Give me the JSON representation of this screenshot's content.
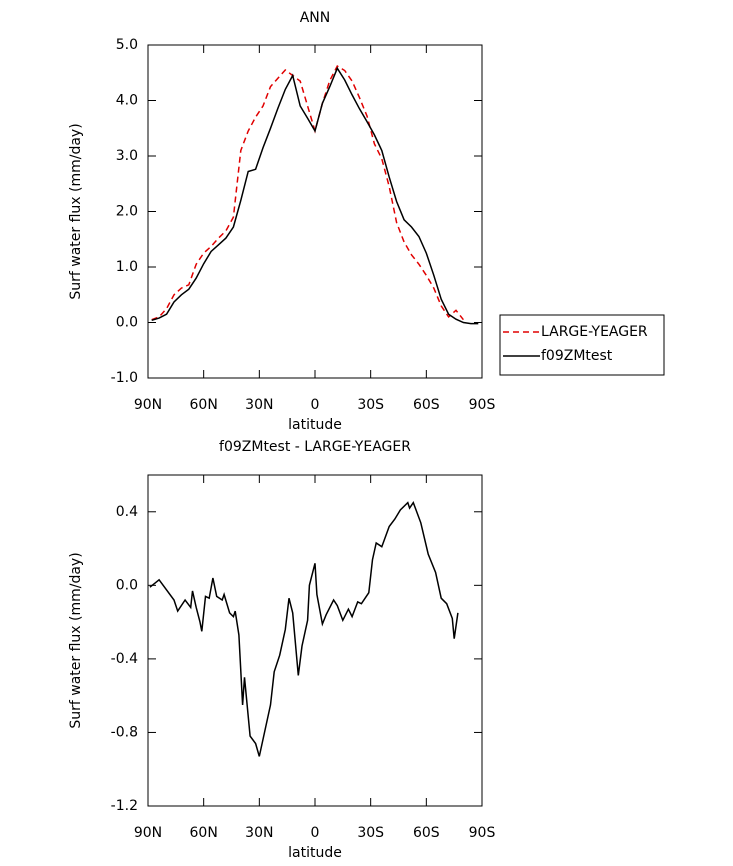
{
  "chart_data": [
    {
      "type": "line",
      "title": "ANN",
      "xlabel": "latitude",
      "ylabel": "Surf water flux (mm/day)",
      "xlim": [
        90,
        -90
      ],
      "xticks": [
        {
          "value": 90,
          "label": "90N"
        },
        {
          "value": 60,
          "label": "60N"
        },
        {
          "value": 30,
          "label": "30N"
        },
        0,
        {
          "value": -30,
          "label": "30S"
        },
        {
          "value": -60,
          "label": "60S"
        },
        {
          "value": -90,
          "label": "90S"
        }
      ],
      "ylim": [
        -1,
        5
      ],
      "yticks": [
        {
          "value": 5,
          "label": "5.0"
        },
        {
          "value": 4,
          "label": "4.0"
        },
        {
          "value": 3,
          "label": "3.0"
        },
        {
          "value": 2,
          "label": "2.0"
        },
        {
          "value": 1,
          "label": "1.0"
        },
        {
          "value": 0,
          "label": "0.0"
        },
        {
          "value": -1,
          "label": "-1.0"
        }
      ],
      "legend": "right",
      "x": [
        88,
        84,
        80,
        76,
        72,
        68,
        64,
        60,
        56,
        52,
        48,
        44,
        40,
        36,
        32,
        28,
        24,
        20,
        16,
        12,
        8,
        4,
        0,
        -4,
        -8,
        -12,
        -16,
        -20,
        -24,
        -28,
        -32,
        -36,
        -40,
        -44,
        -48,
        -52,
        -56,
        -60,
        -64,
        -68,
        -72,
        -76,
        -80,
        -84,
        -88
      ],
      "series": [
        {
          "name": "LARGE-YEAGER",
          "color": "#e00000",
          "linestyle": "dashed",
          "values": [
            0.05,
            0.1,
            0.25,
            0.5,
            0.62,
            0.68,
            1.05,
            1.25,
            1.37,
            1.52,
            1.65,
            1.9,
            3.1,
            3.45,
            3.7,
            3.9,
            4.25,
            4.4,
            4.55,
            4.45,
            4.35,
            3.9,
            3.45,
            3.95,
            4.36,
            4.62,
            4.54,
            4.35,
            4.05,
            3.72,
            3.22,
            2.95,
            2.45,
            1.8,
            1.45,
            1.22,
            1.05,
            0.85,
            0.62,
            0.3,
            0.1,
            0.22,
            0.05,
            null,
            null
          ]
        },
        {
          "name": "f09ZMtest",
          "color": "#000000",
          "linestyle": "solid",
          "values": [
            0.04,
            0.08,
            0.15,
            0.37,
            0.5,
            0.6,
            0.8,
            1.06,
            1.28,
            1.4,
            1.52,
            1.72,
            2.2,
            2.72,
            2.76,
            3.15,
            3.5,
            3.86,
            4.2,
            4.45,
            3.9,
            3.68,
            3.45,
            3.95,
            4.25,
            4.58,
            4.37,
            4.1,
            3.85,
            3.62,
            3.38,
            3.1,
            2.62,
            2.18,
            1.85,
            1.72,
            1.55,
            1.25,
            0.85,
            0.42,
            0.15,
            0.06,
            0.0,
            -0.02,
            -0.02
          ]
        }
      ]
    },
    {
      "type": "line",
      "title": "f09ZMtest - LARGE-YEAGER",
      "xlabel": "latitude",
      "ylabel": "Surf water flux (mm/day)",
      "xlim": [
        90,
        -90
      ],
      "xticks": [
        {
          "value": 90,
          "label": "90N"
        },
        {
          "value": 60,
          "label": "60N"
        },
        {
          "value": 30,
          "label": "30N"
        },
        0,
        {
          "value": -30,
          "label": "30S"
        },
        {
          "value": -60,
          "label": "60S"
        },
        {
          "value": -90,
          "label": "90S"
        }
      ],
      "ylim": [
        -1.2,
        0.6
      ],
      "yticks": [
        0.4,
        {
          "value": 0,
          "label": "0.0"
        },
        -0.4,
        -0.8,
        -1.2
      ],
      "x": [
        89,
        84,
        76,
        74,
        70,
        67,
        66,
        64,
        62,
        61,
        59,
        57,
        55,
        53,
        50,
        49,
        46,
        44,
        43,
        41,
        39,
        38,
        35,
        32,
        30,
        27,
        24,
        22,
        19,
        16,
        14,
        12,
        9,
        7,
        4,
        3,
        0,
        -1,
        -4,
        -6,
        -10,
        -12,
        -15,
        -18,
        -20,
        -23,
        -25,
        -29,
        -31,
        -33,
        -36,
        -40,
        -43,
        -46,
        -50,
        -51,
        -53,
        -57,
        -61,
        -65,
        -68,
        -71,
        -74,
        -75,
        -77
      ],
      "series": [
        {
          "color": "#000000",
          "linestyle": "solid",
          "values": [
            -0.01,
            0.03,
            -0.08,
            -0.14,
            -0.08,
            -0.12,
            -0.03,
            -0.12,
            -0.2,
            -0.25,
            -0.06,
            -0.07,
            0.04,
            -0.06,
            -0.08,
            -0.05,
            -0.15,
            -0.17,
            -0.14,
            -0.27,
            -0.65,
            -0.5,
            -0.82,
            -0.86,
            -0.93,
            -0.79,
            -0.65,
            -0.47,
            -0.38,
            -0.24,
            -0.07,
            -0.15,
            -0.49,
            -0.33,
            -0.19,
            0.0,
            0.12,
            -0.05,
            -0.21,
            -0.16,
            -0.08,
            -0.11,
            -0.19,
            -0.13,
            -0.17,
            -0.09,
            -0.1,
            -0.04,
            0.14,
            0.23,
            0.21,
            0.32,
            0.36,
            0.41,
            0.45,
            0.42,
            0.45,
            0.34,
            0.17,
            0.07,
            -0.07,
            -0.1,
            -0.18,
            -0.29,
            -0.15
          ]
        }
      ]
    }
  ]
}
